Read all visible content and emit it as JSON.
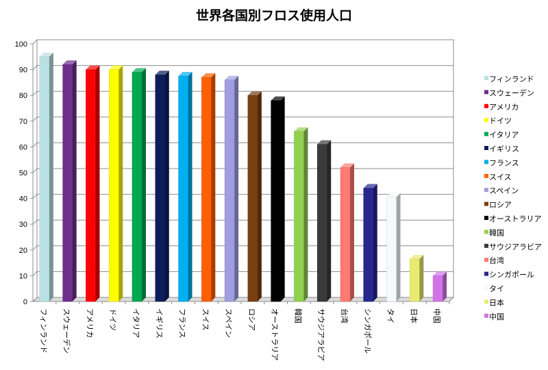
{
  "chart_data": {
    "type": "bar",
    "title": "世界各国別フロス使用人口",
    "xlabel": "",
    "ylabel": "",
    "ylim": [
      0,
      100
    ],
    "yticks": [
      0,
      10,
      20,
      30,
      40,
      50,
      60,
      70,
      80,
      90,
      100
    ],
    "grid": true,
    "legend_position": "right",
    "categories": [
      "フィンランド",
      "スウェーデン",
      "アメリカ",
      "ドイツ",
      "イタリア",
      "イギリス",
      "フランス",
      "スイス",
      "スペイン",
      "ロシア",
      "オーストラリア",
      "韓国",
      "サウジアラビア",
      "台湾",
      "シンガポール",
      "タイ",
      "日本",
      "中国"
    ],
    "values": [
      95,
      92,
      90,
      90,
      89,
      88,
      87.5,
      87,
      86,
      80,
      78,
      66,
      61,
      52,
      44,
      40.5,
      16.5,
      10
    ],
    "colors": [
      "#b9e1e3",
      "#6d2e8c",
      "#ff0000",
      "#ffff00",
      "#00a84f",
      "#0d1d5c",
      "#00b0f0",
      "#ff6000",
      "#9f9ee0",
      "#7a3f11",
      "#000000",
      "#92d050",
      "#3a3a3a",
      "#ff7a72",
      "#27278f",
      "#f4fbfd",
      "#eaea70",
      "#d274e8"
    ]
  }
}
